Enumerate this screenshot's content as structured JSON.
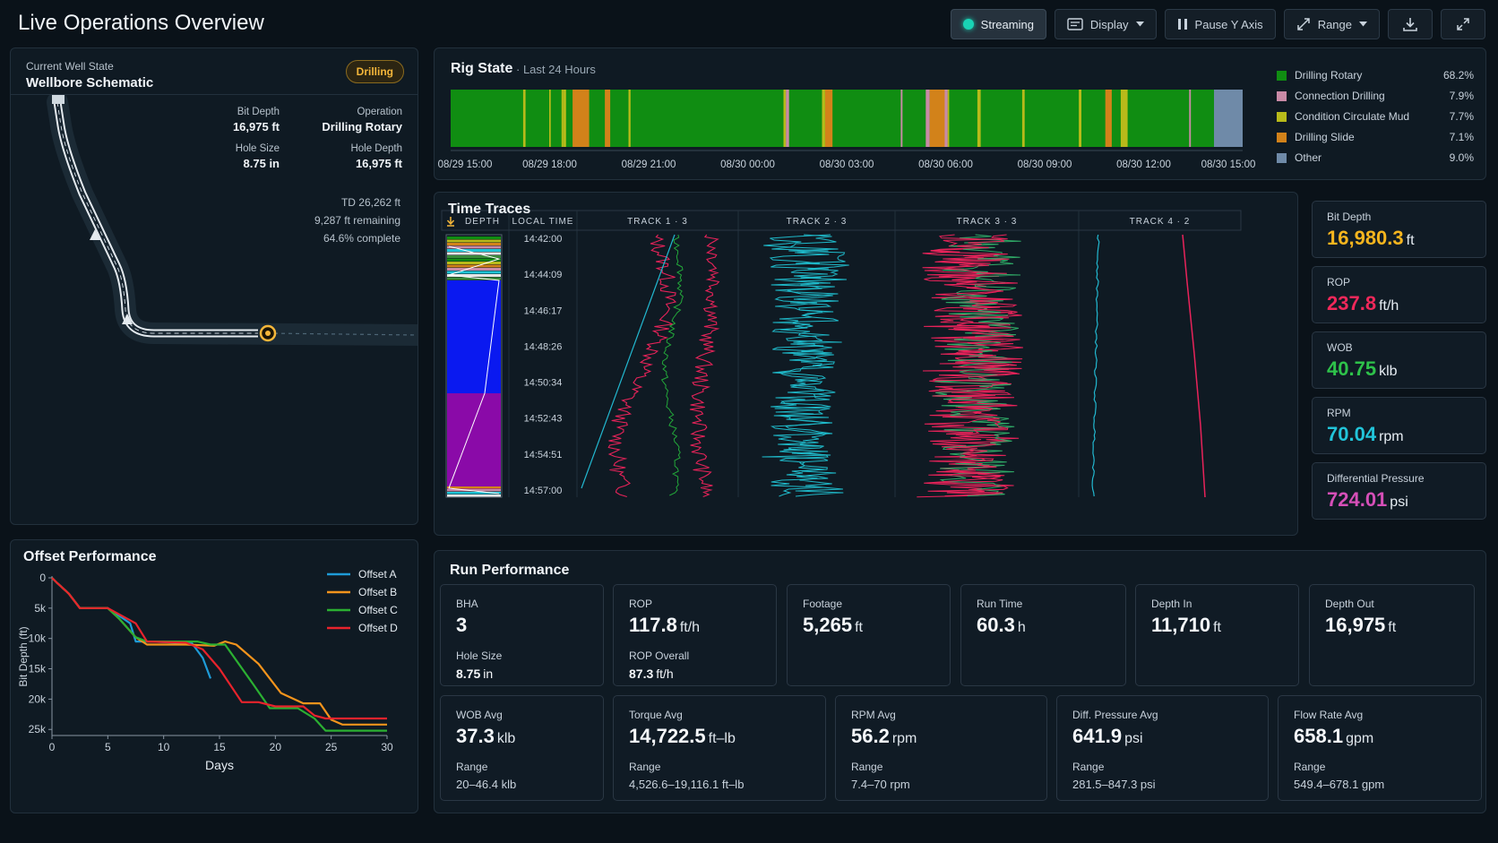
{
  "header": {
    "title": "Live Operations Overview",
    "buttons": {
      "streaming": "Streaming",
      "display": "Display",
      "pause_y": "Pause Y Axis",
      "range": "Range"
    }
  },
  "wellbore": {
    "subtitle": "Current Well State",
    "title": "Wellbore Schematic",
    "badge": "Drilling",
    "stats": {
      "bit_depth_label": "Bit Depth",
      "bit_depth_value": "16,975 ft",
      "operation_label": "Operation",
      "operation_value": "Drilling Rotary",
      "hole_size_label": "Hole Size",
      "hole_size_value": "8.75 in",
      "hole_depth_label": "Hole Depth",
      "hole_depth_value": "16,975 ft"
    },
    "td": "TD 26,262 ft",
    "remaining": "9,287 ft remaining",
    "complete": "64.6% complete",
    "progress_fraction": 0.646
  },
  "offset": {
    "title": "Offset Performance",
    "chart_data": {
      "type": "line",
      "title": "Offset Performance",
      "xlabel": "Days",
      "ylabel": "Bit Depth (ft)",
      "xlim": [
        0,
        30
      ],
      "ylim": [
        0,
        26000
      ],
      "y_inverted": true,
      "x_ticks": [
        "0",
        "5",
        "10",
        "15",
        "20",
        "25",
        "30"
      ],
      "y_ticks": [
        "0",
        "5k",
        "10k",
        "15k",
        "20k",
        "25k"
      ],
      "legend_position": "top-right",
      "series": [
        {
          "name": "Offset A",
          "color": "#1e9bd7",
          "x": [
            0,
            0.5,
            1.5,
            2.5,
            5,
            7,
            7.5,
            9,
            11,
            12.5,
            13.5,
            14.2
          ],
          "y": [
            0,
            900,
            2600,
            5000,
            5000,
            7500,
            10500,
            10500,
            10700,
            10700,
            13200,
            16600
          ]
        },
        {
          "name": "Offset B",
          "color": "#f4941c",
          "x": [
            0,
            0.5,
            1.5,
            2.5,
            5,
            6,
            7.5,
            8.5,
            11,
            12,
            14.5,
            15.5,
            16.5,
            18.5,
            20.5,
            22.5,
            24,
            25,
            26,
            30
          ],
          "y": [
            0,
            900,
            2600,
            5000,
            5000,
            6700,
            9800,
            11000,
            11000,
            11000,
            11200,
            10500,
            11000,
            14200,
            19000,
            20700,
            20700,
            23400,
            24200,
            24200
          ]
        },
        {
          "name": "Offset C",
          "color": "#2bb032",
          "x": [
            0,
            0.5,
            1.5,
            2.5,
            5,
            6,
            7.5,
            8.5,
            12,
            13,
            14.2,
            15.5,
            18,
            19.5,
            22,
            23.5,
            24.5,
            30
          ],
          "y": [
            0,
            900,
            2600,
            5000,
            5000,
            6700,
            9800,
            10500,
            10500,
            10500,
            11000,
            11000,
            17500,
            21500,
            21500,
            23200,
            25200,
            25200
          ]
        },
        {
          "name": "Offset D",
          "color": "#e8232c",
          "x": [
            0,
            0.5,
            1.5,
            2.5,
            5,
            7.5,
            8.5,
            12,
            13.5,
            15,
            17,
            18.5,
            20,
            22.5,
            23.5,
            24.5,
            26,
            30
          ],
          "y": [
            0,
            900,
            2600,
            5000,
            5000,
            7500,
            10500,
            10700,
            11800,
            15000,
            20500,
            20500,
            21200,
            21200,
            22700,
            23200,
            23200,
            23200
          ]
        }
      ]
    }
  },
  "rigstate": {
    "title": "Rig State",
    "subtitle": "· Last 24 Hours",
    "chart_data": {
      "type": "bar",
      "x_ticks": [
        "08/29 15:00",
        "08/29 18:00",
        "08/29 21:00",
        "08/30 00:00",
        "08/30 03:00",
        "08/30 06:00",
        "08/30 09:00",
        "08/30 12:00",
        "08/30 15:00"
      ],
      "legend": [
        {
          "name": "Drilling Rotary",
          "pct": "68.2%",
          "color": "#108d12"
        },
        {
          "name": "Connection Drilling",
          "pct": "7.9%",
          "color": "#c98aa6"
        },
        {
          "name": "Condition Circulate Mud",
          "pct": "7.7%",
          "color": "#b8ba1a"
        },
        {
          "name": "Drilling Slide",
          "pct": "7.1%",
          "color": "#d2821a"
        },
        {
          "name": "Other",
          "pct": "9.0%",
          "color": "#6f8aa8"
        }
      ]
    }
  },
  "traces": {
    "title": "Time Traces",
    "columns": {
      "depth": "DEPTH",
      "local_time": "LOCAL TIME",
      "t1": "TRACK 1 · 3",
      "t2": "TRACK 2 · 3",
      "t3": "TRACK 3 · 3",
      "t4": "TRACK 4 · 2"
    },
    "times": [
      "14:42:00",
      "14:44:09",
      "14:46:17",
      "14:48:26",
      "14:50:34",
      "14:52:43",
      "14:54:51",
      "14:57:00"
    ]
  },
  "kpis": [
    {
      "label": "Bit Depth",
      "value": "16,980.3",
      "unit": "ft",
      "color": "#f6b51e"
    },
    {
      "label": "ROP",
      "value": "237.8",
      "unit": "ft/h",
      "color": "#f0285a"
    },
    {
      "label": "WOB",
      "value": "40.75",
      "unit": "klb",
      "color": "#2ec24a"
    },
    {
      "label": "RPM",
      "value": "70.04",
      "unit": "rpm",
      "color": "#22c4d9"
    },
    {
      "label": "Differential Pressure",
      "value": "724.01",
      "unit": "psi",
      "color": "#d64fb8"
    }
  ],
  "runperf": {
    "title": "Run Performance",
    "row1": [
      {
        "label": "BHA",
        "value": "3",
        "unit": "",
        "label2": "Hole Size",
        "value2": "8.75",
        "unit2": "in"
      },
      {
        "label": "ROP",
        "value": "117.8",
        "unit": "ft/h",
        "label2": "ROP Overall",
        "value2": "87.3",
        "unit2": "ft/h"
      },
      {
        "label": "Footage",
        "value": "5,265",
        "unit": "ft"
      },
      {
        "label": "Run Time",
        "value": "60.3",
        "unit": "h"
      },
      {
        "label": "Depth In",
        "value": "11,710",
        "unit": "ft"
      },
      {
        "label": "Depth Out",
        "value": "16,975",
        "unit": "ft"
      }
    ],
    "row2": [
      {
        "label": "WOB Avg",
        "value": "37.3",
        "unit": "klb",
        "range_label": "Range",
        "range": "20–46.4 klb"
      },
      {
        "label": "Torque Avg",
        "value": "14,722.5",
        "unit": "ft–lb",
        "range_label": "Range",
        "range": "4,526.6–19,116.1 ft–lb"
      },
      {
        "label": "RPM Avg",
        "value": "56.2",
        "unit": "rpm",
        "range_label": "Range",
        "range": "7.4–70 rpm"
      },
      {
        "label": "Diff. Pressure Avg",
        "value": "641.9",
        "unit": "psi",
        "range_label": "Range",
        "range": "281.5–847.3 psi"
      },
      {
        "label": "Flow Rate Avg",
        "value": "658.1",
        "unit": "gpm",
        "range_label": "Range",
        "range": "549.4–678.1 gpm"
      }
    ]
  }
}
